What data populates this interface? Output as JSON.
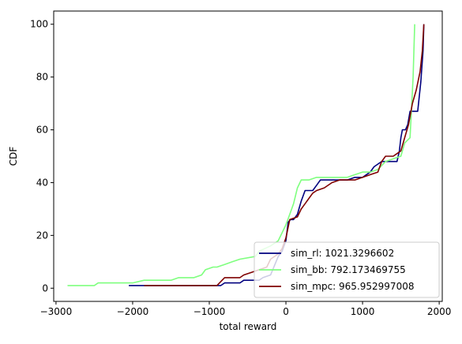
{
  "chart_data": {
    "type": "line",
    "title": "",
    "xlabel": "total reward",
    "ylabel": "CDF",
    "xlim": [
      -3030,
      2040
    ],
    "ylim": [
      -5,
      105
    ],
    "xticks": [
      -3000,
      -2000,
      -1000,
      0,
      1000,
      2000
    ],
    "xtick_labels": [
      "−3000",
      "−2000",
      "−1000",
      "0",
      "1000",
      "2000"
    ],
    "yticks": [
      0,
      20,
      40,
      60,
      80,
      100
    ],
    "ytick_labels": [
      "0",
      "20",
      "40",
      "60",
      "80",
      "100"
    ],
    "grid": false,
    "legend_position": "lower-right",
    "series": [
      {
        "name": "sim_rl: 1021.3296602",
        "color": "#00007f",
        "points": [
          [
            -2050,
            1
          ],
          [
            -850,
            1
          ],
          [
            -800,
            2
          ],
          [
            -600,
            2
          ],
          [
            -550,
            3
          ],
          [
            -350,
            3
          ],
          [
            -300,
            4
          ],
          [
            -200,
            5
          ],
          [
            -100,
            12
          ],
          [
            -50,
            14
          ],
          [
            0,
            18
          ],
          [
            30,
            25
          ],
          [
            60,
            26
          ],
          [
            100,
            26
          ],
          [
            150,
            28
          ],
          [
            200,
            33
          ],
          [
            250,
            37
          ],
          [
            300,
            37
          ],
          [
            350,
            37
          ],
          [
            400,
            39
          ],
          [
            450,
            41
          ],
          [
            500,
            41
          ],
          [
            550,
            41
          ],
          [
            600,
            41
          ],
          [
            700,
            41
          ],
          [
            800,
            41
          ],
          [
            900,
            42
          ],
          [
            1000,
            42
          ],
          [
            1050,
            43
          ],
          [
            1100,
            44
          ],
          [
            1150,
            46
          ],
          [
            1200,
            47
          ],
          [
            1250,
            48
          ],
          [
            1300,
            48
          ],
          [
            1400,
            48
          ],
          [
            1450,
            48
          ],
          [
            1480,
            52
          ],
          [
            1500,
            57
          ],
          [
            1520,
            60
          ],
          [
            1560,
            60
          ],
          [
            1590,
            62
          ],
          [
            1620,
            67
          ],
          [
            1700,
            67
          ],
          [
            1720,
            67
          ],
          [
            1760,
            78
          ],
          [
            1790,
            90
          ],
          [
            1800,
            100
          ]
        ]
      },
      {
        "name": "sim_bb: 792.173469755",
        "color": "#7fff7f",
        "points": [
          [
            -2850,
            1
          ],
          [
            -2500,
            1
          ],
          [
            -2450,
            2
          ],
          [
            -2000,
            2
          ],
          [
            -1850,
            3
          ],
          [
            -1500,
            3
          ],
          [
            -1400,
            4
          ],
          [
            -1200,
            4
          ],
          [
            -1100,
            5
          ],
          [
            -1050,
            7
          ],
          [
            -950,
            8
          ],
          [
            -900,
            8
          ],
          [
            -800,
            9
          ],
          [
            -700,
            10
          ],
          [
            -600,
            11
          ],
          [
            -400,
            12
          ],
          [
            -350,
            14
          ],
          [
            -200,
            16
          ],
          [
            -100,
            18
          ],
          [
            -50,
            21
          ],
          [
            0,
            24
          ],
          [
            50,
            28
          ],
          [
            100,
            32
          ],
          [
            150,
            38
          ],
          [
            200,
            41
          ],
          [
            300,
            41
          ],
          [
            400,
            42
          ],
          [
            500,
            42
          ],
          [
            700,
            42
          ],
          [
            800,
            42
          ],
          [
            900,
            43
          ],
          [
            1000,
            44
          ],
          [
            1100,
            44
          ],
          [
            1200,
            45
          ],
          [
            1300,
            48
          ],
          [
            1400,
            49
          ],
          [
            1500,
            50
          ],
          [
            1550,
            55
          ],
          [
            1620,
            57
          ],
          [
            1660,
            80
          ],
          [
            1680,
            100
          ]
        ]
      },
      {
        "name": "sim_mpc: 965.952997008",
        "color": "#7f0000",
        "points": [
          [
            -1850,
            1
          ],
          [
            -1600,
            1
          ],
          [
            -1400,
            1
          ],
          [
            -1100,
            1
          ],
          [
            -900,
            1
          ],
          [
            -800,
            4
          ],
          [
            -600,
            4
          ],
          [
            -550,
            5
          ],
          [
            -450,
            6
          ],
          [
            -350,
            7
          ],
          [
            -250,
            8
          ],
          [
            -200,
            11
          ],
          [
            -100,
            13
          ],
          [
            -50,
            15
          ],
          [
            0,
            19
          ],
          [
            50,
            26
          ],
          [
            150,
            27
          ],
          [
            200,
            30
          ],
          [
            250,
            32
          ],
          [
            300,
            34
          ],
          [
            350,
            36
          ],
          [
            400,
            37
          ],
          [
            500,
            38
          ],
          [
            600,
            40
          ],
          [
            700,
            41
          ],
          [
            800,
            41
          ],
          [
            900,
            41
          ],
          [
            1000,
            42
          ],
          [
            1100,
            43
          ],
          [
            1200,
            44
          ],
          [
            1250,
            48
          ],
          [
            1300,
            50
          ],
          [
            1400,
            50
          ],
          [
            1450,
            51
          ],
          [
            1500,
            52
          ],
          [
            1550,
            57
          ],
          [
            1600,
            62
          ],
          [
            1650,
            70
          ],
          [
            1700,
            75
          ],
          [
            1750,
            82
          ],
          [
            1780,
            90
          ],
          [
            1800,
            100
          ]
        ]
      }
    ]
  }
}
